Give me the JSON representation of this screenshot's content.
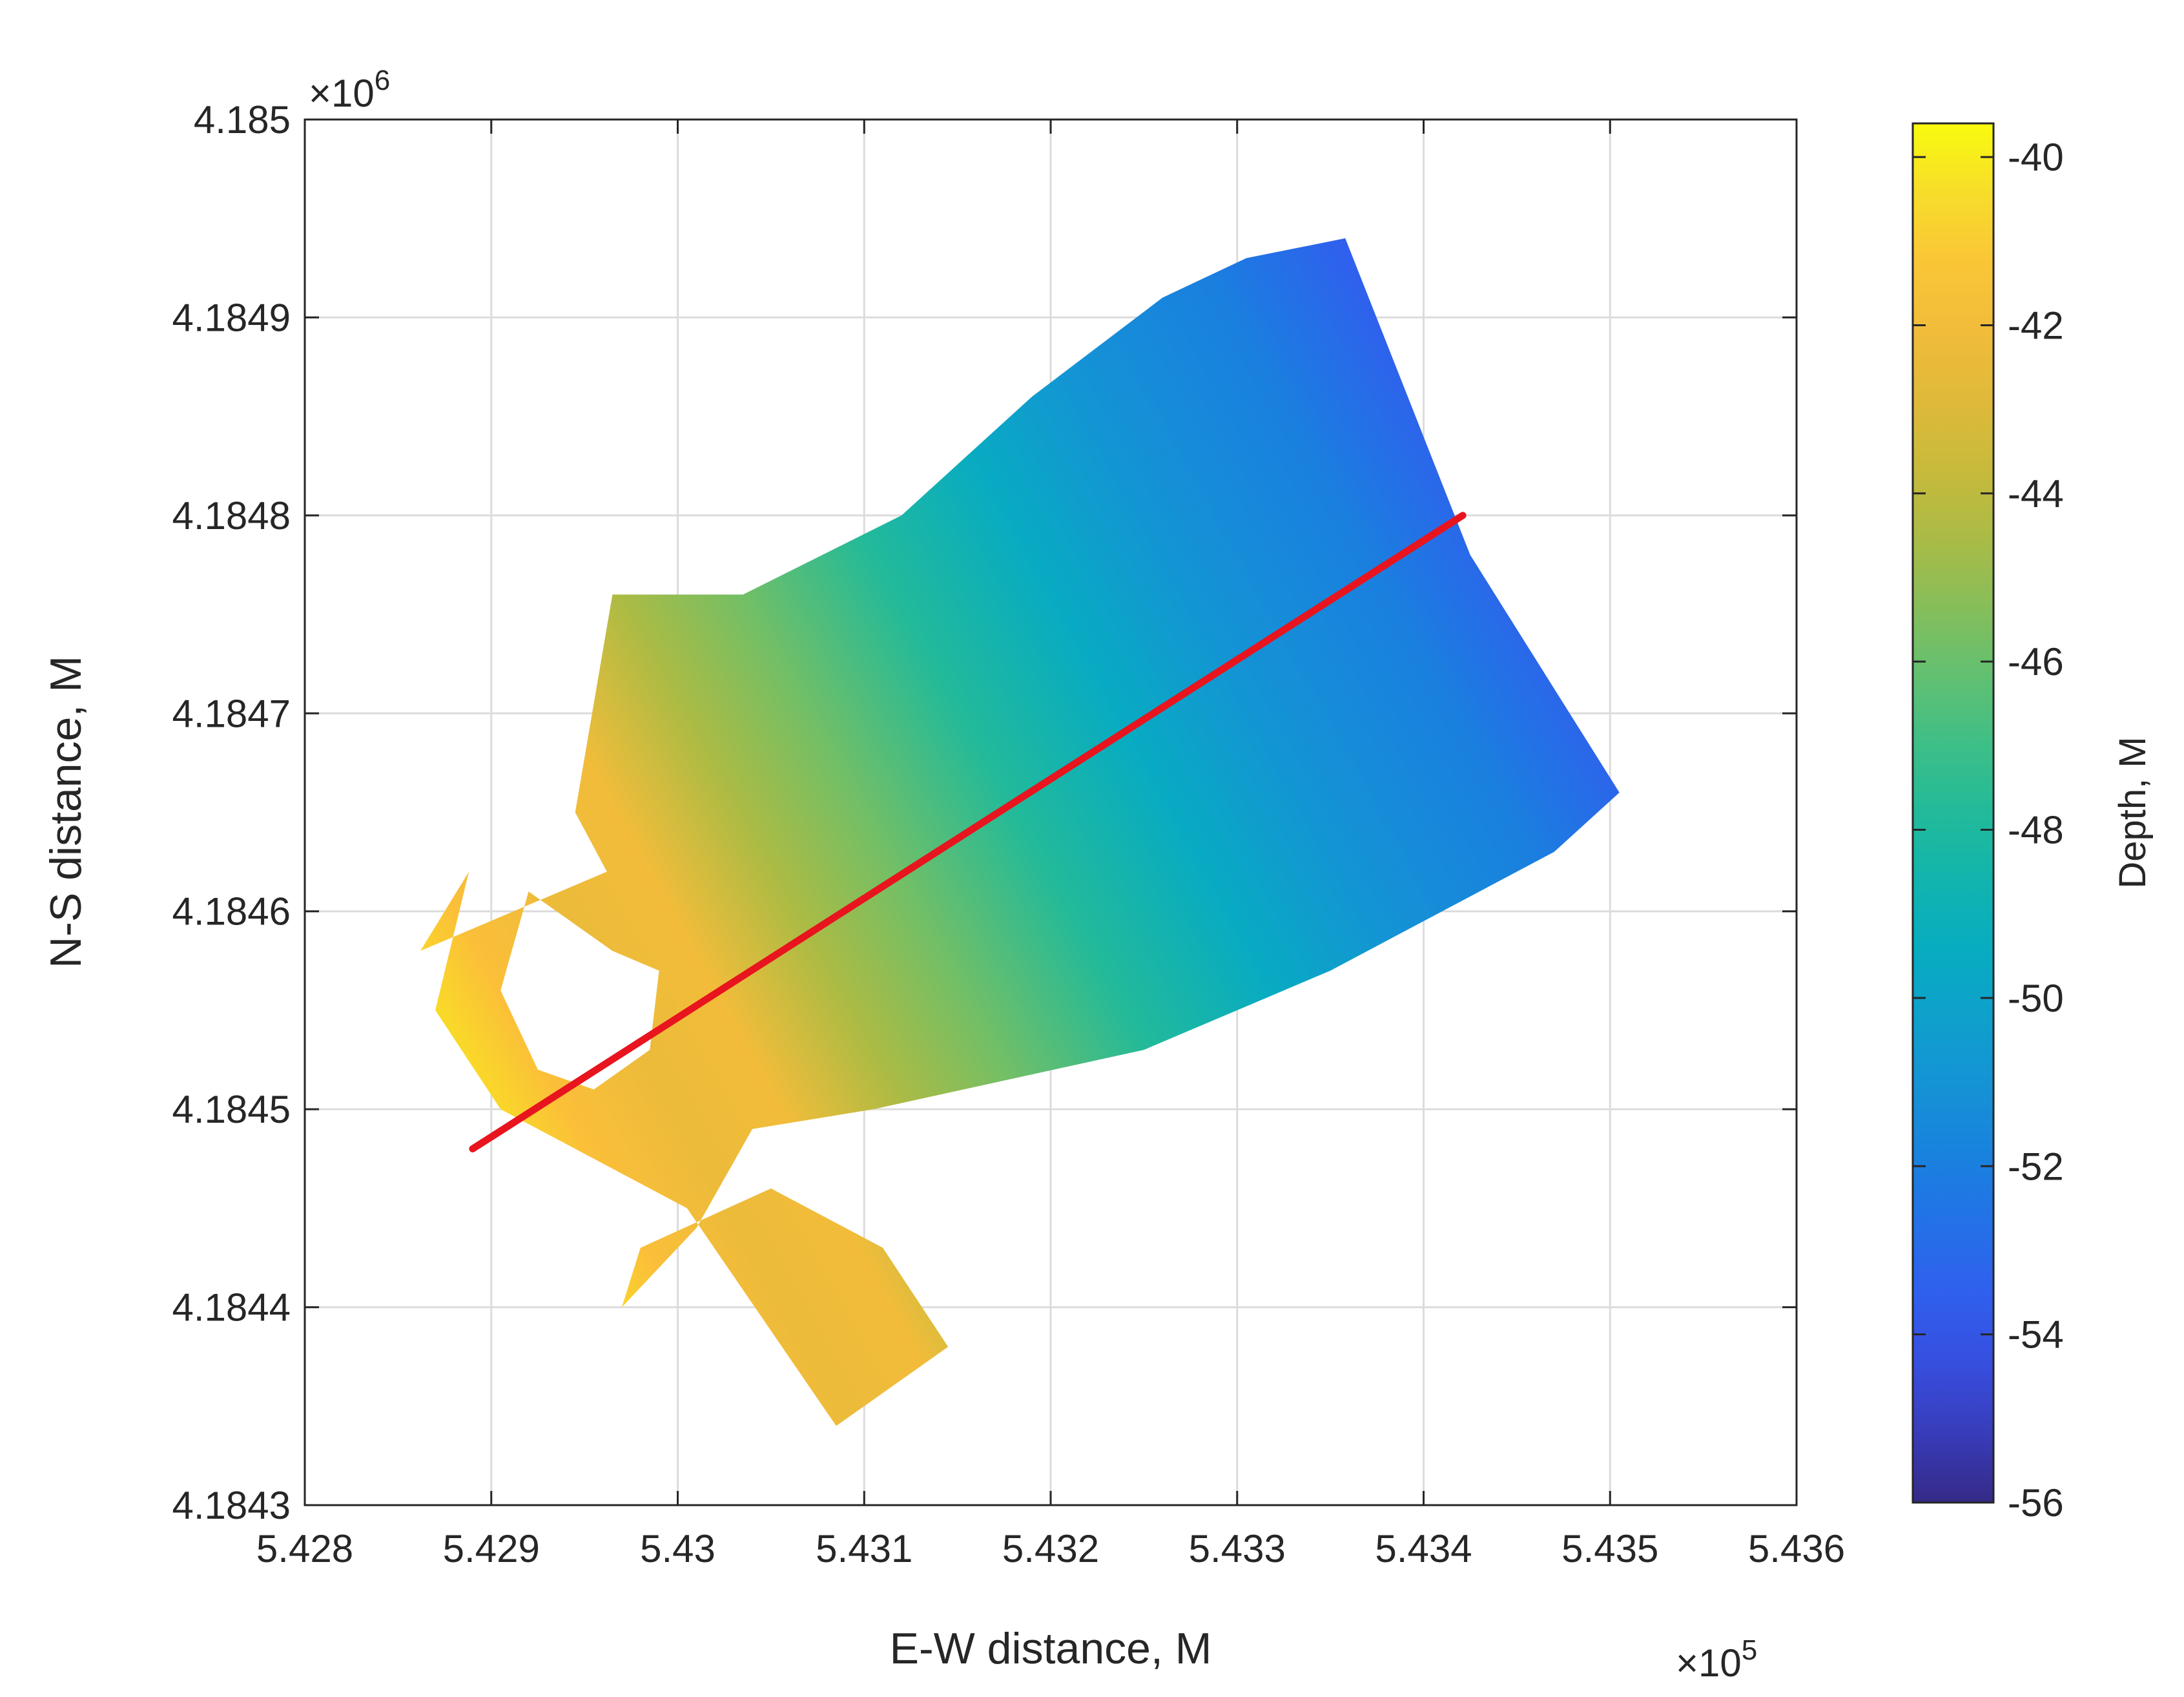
{
  "chart_data": {
    "type": "heatmap",
    "title": "",
    "xlabel": "E-W distance, M",
    "ylabel": "N-S distance, M",
    "x_multiplier": "×10",
    "x_multiplier_exp": "5",
    "y_multiplier": "×10",
    "y_multiplier_exp": "6",
    "xlim": [
      5.428,
      5.436
    ],
    "ylim": [
      4.1843,
      4.185
    ],
    "x_ticks": [
      "5.428",
      "5.429",
      "5.43",
      "5.431",
      "5.432",
      "5.433",
      "5.434",
      "5.435",
      "5.436"
    ],
    "x_tick_values": [
      5.428,
      5.429,
      5.43,
      5.431,
      5.432,
      5.433,
      5.434,
      5.435,
      5.436
    ],
    "y_ticks": [
      "4.1843",
      "4.1844",
      "4.1845",
      "4.1846",
      "4.1847",
      "4.1848",
      "4.1849",
      "4.185"
    ],
    "y_tick_values": [
      4.1843,
      4.1844,
      4.1845,
      4.1846,
      4.1847,
      4.1848,
      4.1849,
      4.185
    ],
    "grid": true,
    "colormap": "parula",
    "colorbar": {
      "label": "Depth, M",
      "lim": [
        -56,
        -39.6
      ],
      "ticks": [
        "-40",
        "-42",
        "-44",
        "-46",
        "-48",
        "-50",
        "-52",
        "-54",
        "-56"
      ],
      "tick_values": [
        -40,
        -42,
        -44,
        -46,
        -48,
        -50,
        -52,
        -54,
        -56
      ],
      "placement": "right"
    },
    "survey_boundary": {
      "x": [
        5.42962,
        5.42945,
        5.42965,
        5.43035,
        5.4312,
        5.4319,
        5.4326,
        5.43305,
        5.43358,
        5.43425,
        5.43505,
        5.4347,
        5.4335,
        5.4325,
        5.43105,
        5.4304,
        5.4301,
        5.4297,
        5.4298,
        5.4305,
        5.4311,
        5.43145,
        5.43085,
        5.43005,
        5.42905,
        5.4287,
        5.42888,
        5.42862
      ],
      "y": [
        4.18462,
        4.18465,
        4.18476,
        4.18476,
        4.1848,
        4.18486,
        4.18491,
        4.18493,
        4.18494,
        4.18478,
        4.18466,
        4.18463,
        4.18457,
        4.18453,
        4.1845,
        4.18449,
        4.18444,
        4.1844,
        4.18443,
        4.18446,
        4.18443,
        4.18438,
        4.18434,
        4.18445,
        4.1845,
        4.18455,
        4.18462,
        4.18458
      ]
    },
    "data_gap": {
      "x": [
        5.4292,
        5.42965,
        5.4299,
        5.42985,
        5.42955,
        5.42925,
        5.42905
      ],
      "y": [
        4.18461,
        4.18458,
        4.18457,
        4.18453,
        4.18451,
        4.18452,
        4.18456
      ]
    },
    "depth_gradient": {
      "axis_start": {
        "x": 5.4288,
        "y": 4.18449
      },
      "axis_end": {
        "x": 5.4351,
        "y": 4.18482
      },
      "stops": [
        {
          "t": 0.0,
          "depth": -40.0
        },
        {
          "t": 0.08,
          "depth": -41.5
        },
        {
          "t": 0.15,
          "depth": -42.3
        },
        {
          "t": 0.22,
          "depth": -42.0
        },
        {
          "t": 0.3,
          "depth": -44.5
        },
        {
          "t": 0.38,
          "depth": -45.8
        },
        {
          "t": 0.48,
          "depth": -47.8
        },
        {
          "t": 0.58,
          "depth": -49.5
        },
        {
          "t": 0.68,
          "depth": -51.0
        },
        {
          "t": 0.8,
          "depth": -52.0
        },
        {
          "t": 0.9,
          "depth": -53.5
        },
        {
          "t": 1.0,
          "depth": -55.5
        }
      ]
    },
    "transect_line": {
      "color": "#e8141e",
      "x": [
        5.4289,
        5.43421
      ],
      "y": [
        4.18448,
        4.1848
      ]
    }
  }
}
